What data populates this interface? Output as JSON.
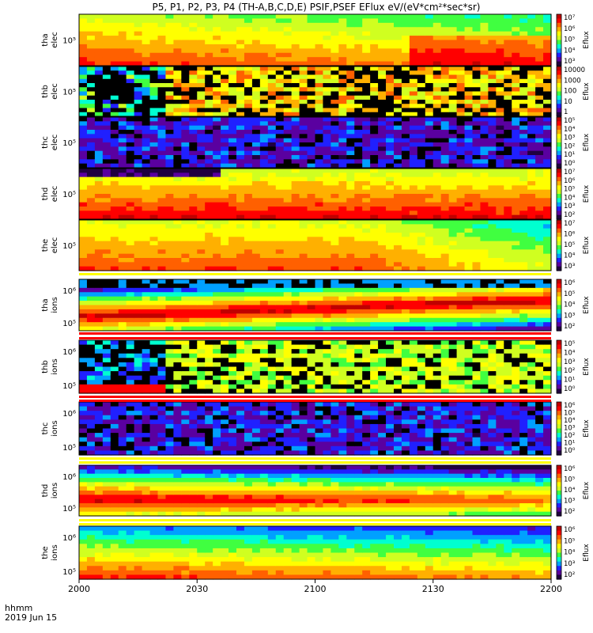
{
  "title": "P5, P1, P2, P3, P4 (TH-A,B,C,D,E) PSIF,PSEF EFlux eV/(eV*cm²*sec*sr)",
  "time_axis": {
    "label_line1": "hhmm",
    "label_line2": "2019 Jun 15",
    "ticks": [
      "2000",
      "2030",
      "2100",
      "2130",
      "2200"
    ]
  },
  "colors": {
    "colormap": [
      "#200040",
      "#5a00a0",
      "#2020ff",
      "#00a0ff",
      "#00ffd0",
      "#40ff40",
      "#d0ff20",
      "#ffff00",
      "#ffb000",
      "#ff6000",
      "#ff0000",
      "#c00000"
    ],
    "separator_red": "#ff0000",
    "separator_yellow": "#ffff00",
    "missing": "#000000"
  },
  "chart_data": [
    {
      "type": "heatmap",
      "probe": "tha",
      "species": "elec",
      "ytick": "10⁵",
      "colorbar_ticks": [
        "10⁷",
        "10⁶",
        "10⁵",
        "10⁴",
        "10³"
      ],
      "colorbar_label": "Eflux",
      "pattern": "fade_right_rise"
    },
    {
      "type": "heatmap",
      "probe": "thb",
      "species": "elec",
      "ytick": "10⁵",
      "colorbar_ticks": [
        "10000",
        "1000",
        "100",
        "10",
        "1"
      ],
      "colorbar_label": "Eflux",
      "pattern": "noisy_split"
    },
    {
      "type": "heatmap",
      "probe": "thc",
      "species": "elec",
      "ytick": "10⁵",
      "colorbar_ticks": [
        "10⁵",
        "10⁴",
        "10³",
        "10²",
        "10¹",
        "10⁰"
      ],
      "colorbar_label": "Eflux",
      "pattern": "noise_low"
    },
    {
      "type": "heatmap",
      "probe": "thd",
      "species": "elec",
      "ytick": "10⁵",
      "colorbar_ticks": [
        "10⁷",
        "10⁶",
        "10⁵",
        "10⁴",
        "10³",
        "10²"
      ],
      "colorbar_label": "Eflux",
      "pattern": "hot_band"
    },
    {
      "type": "heatmap",
      "probe": "the",
      "species": "elec",
      "ytick": "10⁵",
      "colorbar_ticks": [
        "10⁷",
        "10⁶",
        "10⁵",
        "10⁴",
        "10³"
      ],
      "colorbar_label": "Eflux",
      "pattern": "warm_fade"
    },
    {
      "type": "heatmap",
      "probe": "tha",
      "species": "ions",
      "ytick_top": "10⁶",
      "ytick_bottom": "10⁵",
      "colorbar_ticks": [
        "10⁶",
        "10⁵",
        "10⁴",
        "10³",
        "10²"
      ],
      "colorbar_label": "Eflux",
      "pattern": "ion_rising"
    },
    {
      "type": "heatmap",
      "probe": "thb",
      "species": "ions",
      "ytick_top": "10⁶",
      "ytick_bottom": "10⁵",
      "colorbar_ticks": [
        "10⁵",
        "10⁴",
        "10³",
        "10²",
        "10¹",
        "10⁰"
      ],
      "colorbar_label": "Eflux",
      "pattern": "ion_noisy"
    },
    {
      "type": "heatmap",
      "probe": "thc",
      "species": "ions",
      "ytick_top": "10⁶",
      "ytick_bottom": "10⁵",
      "colorbar_ticks": [
        "10⁶",
        "10⁵",
        "10⁴",
        "10³",
        "10²",
        "10¹",
        "10⁰"
      ],
      "colorbar_label": "Eflux",
      "pattern": "noise_low"
    },
    {
      "type": "heatmap",
      "probe": "thd",
      "species": "ions",
      "ytick_top": "10⁶",
      "ytick_bottom": "10⁵",
      "colorbar_ticks": [
        "10⁶",
        "10⁵",
        "10⁴",
        "10³",
        "10²"
      ],
      "colorbar_label": "Eflux",
      "pattern": "ion_warm"
    },
    {
      "type": "heatmap",
      "probe": "the",
      "species": "ions",
      "ytick_top": "10⁶",
      "ytick_bottom": "10⁵",
      "colorbar_ticks": [
        "10⁶",
        "10⁵",
        "10⁴",
        "10³",
        "10²"
      ],
      "colorbar_label": "Eflux",
      "pattern": "ion_warm2"
    }
  ]
}
